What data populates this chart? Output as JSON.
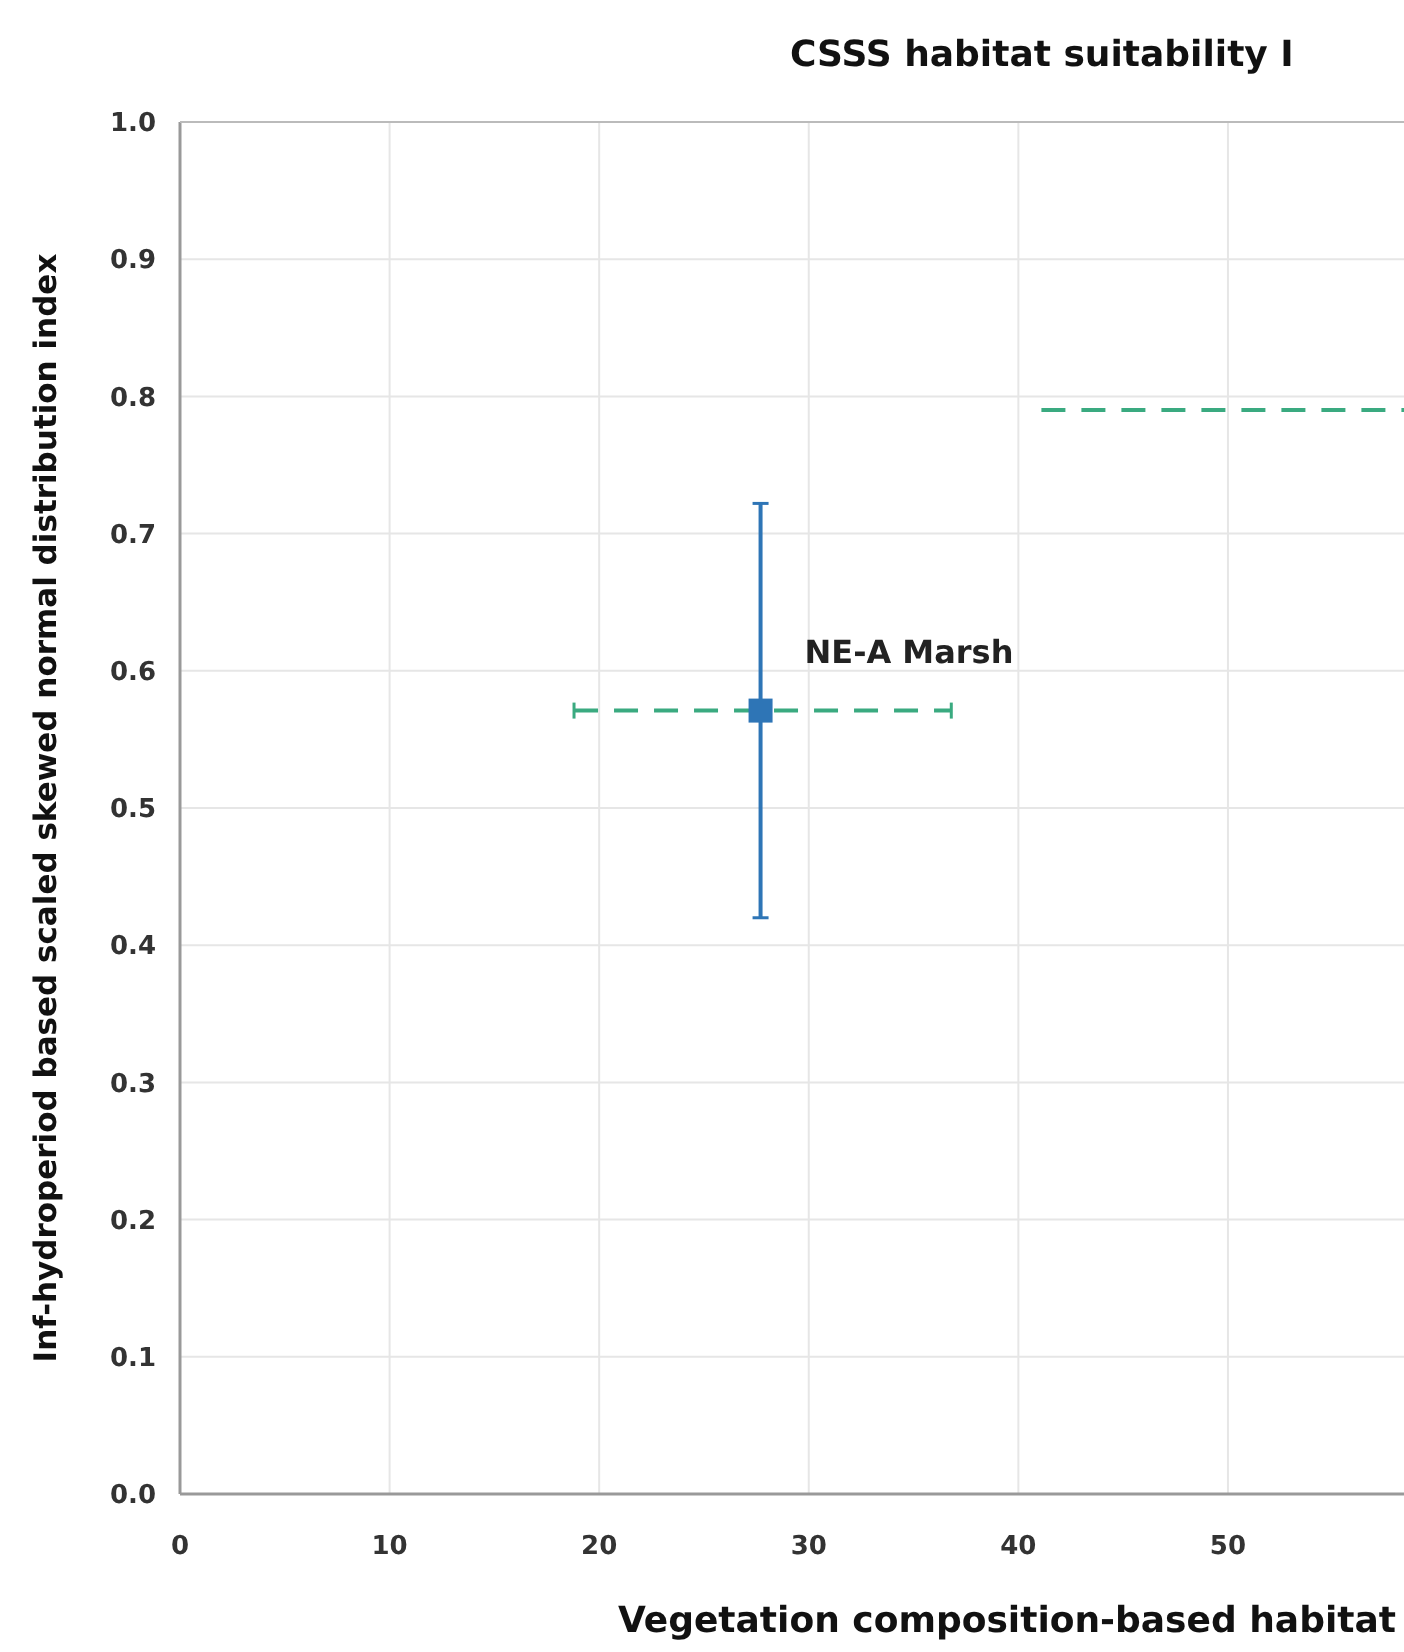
{
  "chart_data": {
    "type": "scatter",
    "title": "CSSS habitat suitability I",
    "xlabel": "Vegetation composition-based habitat",
    "ylabel": "Inf-hydroperiod based scaled skewed normal distribution index",
    "xlim": [
      0,
      58.4
    ],
    "xticks": [
      0,
      10,
      20,
      30,
      40,
      50
    ],
    "ylim": [
      0,
      1
    ],
    "yticks": [
      {
        "value": 0,
        "label": "0.0"
      },
      0.1,
      0.2,
      0.3,
      0.4,
      0.5,
      0.6,
      0.7,
      0.8,
      0.9,
      {
        "value": 1,
        "label": "1.0"
      }
    ],
    "grid": true,
    "marker": "square",
    "series": [
      {
        "name": "NE-A Marsh",
        "color": "#2e75b6",
        "x": [
          27.7
        ],
        "values": [
          0.571
        ],
        "errors": [
          [
            0.42,
            0.722
          ]
        ],
        "xerrors": [
          [
            18.8,
            36.8
          ]
        ]
      },
      {
        "type": "line",
        "color": "#3aaa80",
        "line_style": "dashed",
        "marker": "none",
        "x": [
          41.1,
          58.4
        ],
        "values": [
          0.79,
          0.79
        ]
      }
    ]
  }
}
